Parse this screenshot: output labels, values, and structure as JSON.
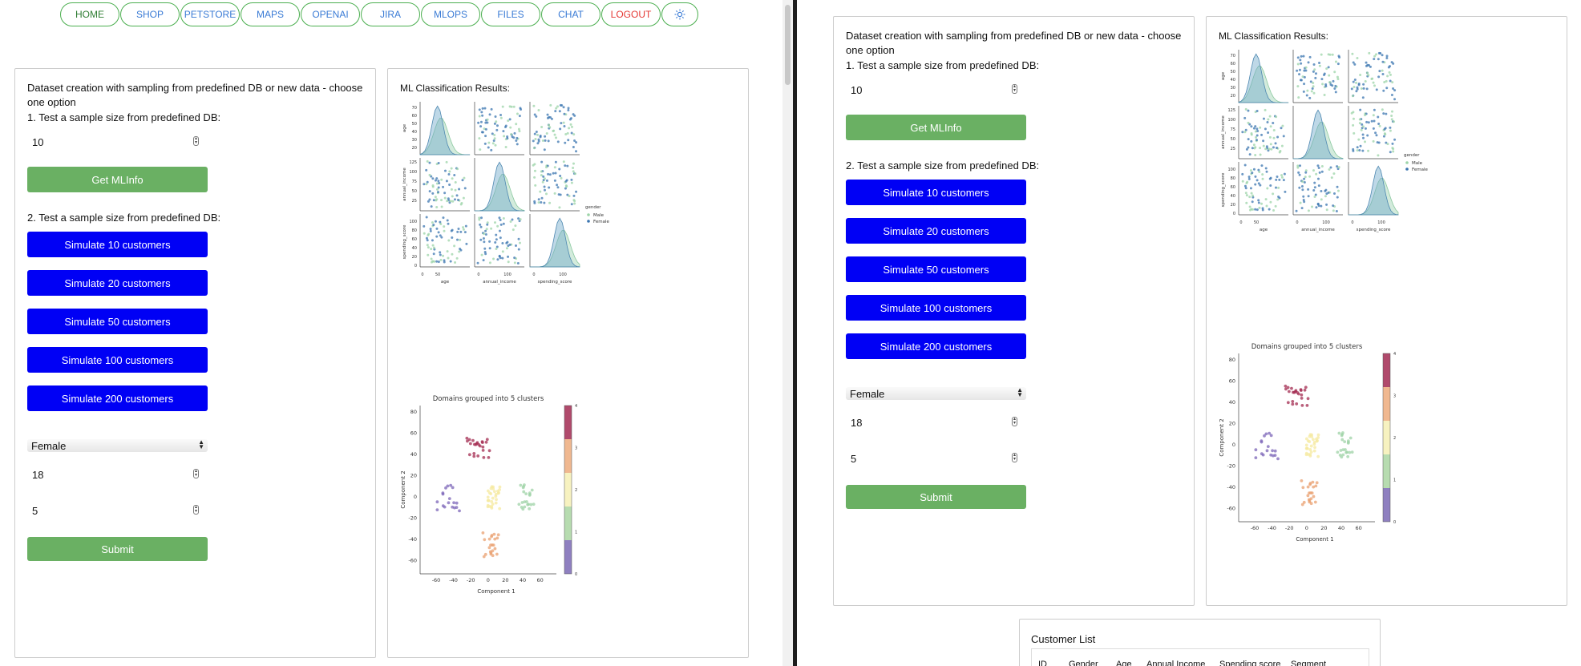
{
  "nav": [
    "HOME",
    "SHOP",
    "PETSTORE",
    "MAPS",
    "OPENAI",
    "JIRA",
    "MLOPS",
    "FILES",
    "CHAT",
    "LOGOUT"
  ],
  "nav_icons": {
    "theme": "sun-icon"
  },
  "form": {
    "title": "Dataset creation with sampling from predefined DB or new data - choose one option",
    "test1_label": "1. Test a sample size from predefined DB:",
    "sample_size": "10",
    "get_button": "Get MLInfo",
    "test2_label": "2. Test a sample size from predefined DB:",
    "simulate_buttons": [
      "Simulate 10 customers",
      "Simulate 20 customers",
      "Simulate 50 customers",
      "Simulate 100 customers",
      "Simulate 200 customers"
    ],
    "gender": "Female",
    "age": "18",
    "count": "5",
    "submit": "Submit"
  },
  "results": {
    "title": "ML Classification Results:",
    "pairplot": {
      "variables": [
        "age",
        "annual_income",
        "spending_score"
      ],
      "legend_title": "gender",
      "legend": [
        "Male",
        "Female"
      ],
      "age_ticks": [
        "20",
        "30",
        "40",
        "50",
        "60",
        "70"
      ],
      "income_ticks": [
        "25",
        "50",
        "75",
        "100",
        "125"
      ],
      "spending_ticks": [
        "0",
        "20",
        "40",
        "60",
        "80",
        "100"
      ],
      "x_age_ticks": [
        "0",
        "50"
      ],
      "x_income_ticks": [
        "0",
        "100"
      ],
      "x_spending_ticks": [
        "0",
        "100"
      ]
    },
    "cluster": {
      "title": "Domains grouped into 5 clusters",
      "xlabel": "Component 1",
      "ylabel": "Component 2",
      "x_ticks": [
        "-60",
        "-40",
        "-20",
        "0",
        "20",
        "40",
        "60"
      ],
      "y_ticks": [
        "80",
        "60",
        "40",
        "20",
        "0",
        "-20",
        "-40",
        "-60"
      ],
      "colorbar_ticks": [
        "0",
        "1",
        "2",
        "3",
        "4"
      ]
    }
  },
  "colors": {
    "green": "#6ab063",
    "blue": "#0000f5",
    "nav_border": "#4caf50",
    "logout": "#e53935"
  },
  "customer_list": {
    "title": "Customer List",
    "columns": [
      "ID",
      "Gender",
      "Age",
      "Annual Income",
      "Spending score",
      "Segment"
    ]
  }
}
